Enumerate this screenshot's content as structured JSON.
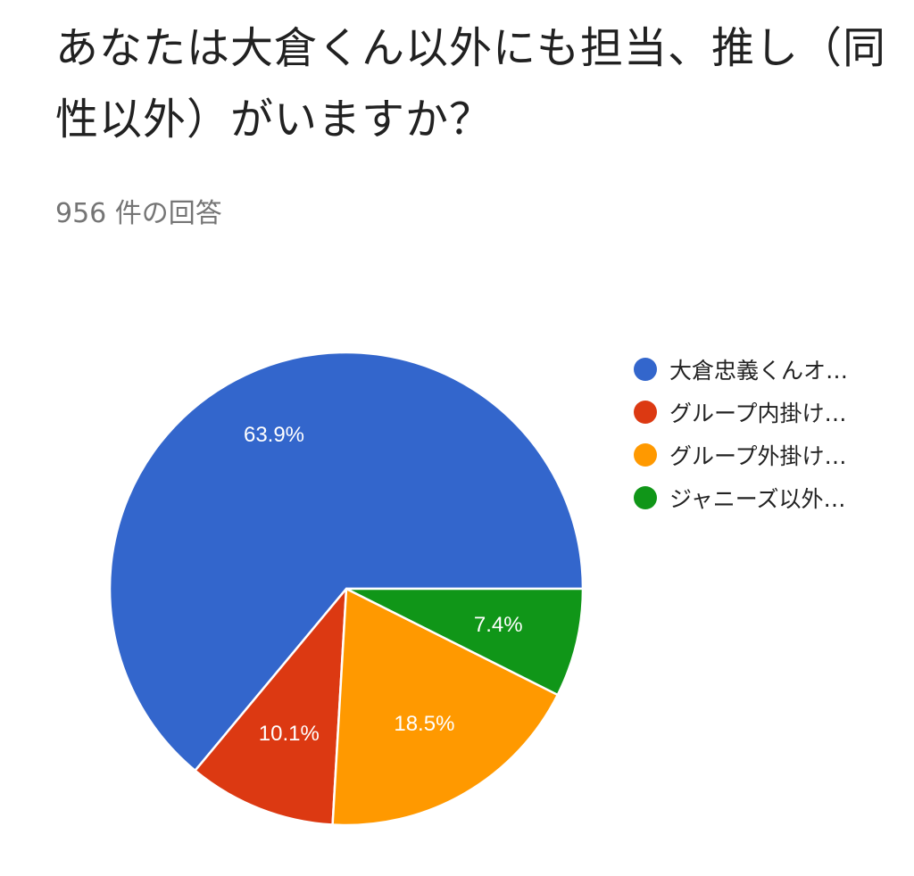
{
  "question": {
    "title": "あなたは大倉くん以外にも担当、推し（同性以外）がいますか？",
    "response_count": "956 件の回答"
  },
  "colors": {
    "blue": "#3366cc",
    "red": "#dc3912",
    "orange": "#ff9900",
    "green": "#109618"
  },
  "chart_data": {
    "type": "pie",
    "legend_position": "right",
    "slices": [
      {
        "label": "大倉忠義くんオ…",
        "value": 63.9,
        "display": "63.9%",
        "color": "#3366cc"
      },
      {
        "label": "グループ内掛け…",
        "value": 10.1,
        "display": "10.1%",
        "color": "#dc3912"
      },
      {
        "label": "グループ外掛け…",
        "value": 18.5,
        "display": "18.5%",
        "color": "#ff9900"
      },
      {
        "label": "ジャニーズ以外…",
        "value": 7.4,
        "display": "7.4%",
        "color": "#109618"
      }
    ]
  }
}
